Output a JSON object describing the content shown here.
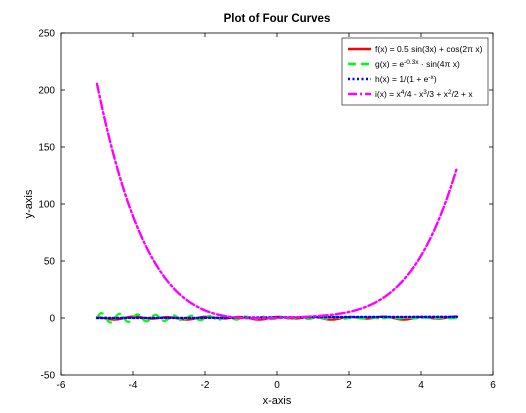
{
  "chart_data": {
    "type": "line",
    "title": "Plot of Four Curves",
    "xlabel": "x-axis",
    "ylabel": "y-axis",
    "xlim": [
      -6,
      6
    ],
    "ylim": [
      -50,
      250
    ],
    "xticks": [
      -6,
      -4,
      -2,
      0,
      2,
      4,
      6
    ],
    "yticks": [
      -50,
      0,
      50,
      100,
      150,
      200,
      250
    ],
    "grid": false,
    "legend_position": "top-right",
    "x_domain": [
      -5,
      5
    ],
    "series": [
      {
        "name": "f(x) = 0.5 sin(3x) + cos(2πx)",
        "legend_html": "f(x) = 0.5 sin(3x) + cos(2π x)",
        "color": "#ff0000",
        "style": "solid",
        "fn": "f"
      },
      {
        "name": "g(x) = e^{-0.3x} · sin(4πx)",
        "legend_html": "g(x) = e<tspan baseline-shift='super' font-size='6.5'>-0.3x</tspan> · sin(4π x)",
        "color": "#00ff00",
        "style": "dashed",
        "fn": "g"
      },
      {
        "name": "h(x) = 1/(1 + e^{-x})",
        "legend_html": "h(x) = 1/(1 + e<tspan baseline-shift='super' font-size='6.5'>-x</tspan>)",
        "color": "#0000ff",
        "style": "dotted",
        "fn": "h"
      },
      {
        "name": "i(x) = x^4/4 - x^3/3 + x^2/2 + x",
        "legend_html": "i(x) = x<tspan baseline-shift='super' font-size='6.5'>4</tspan>/4 - x<tspan baseline-shift='super' font-size='6.5'>3</tspan>/3 + x<tspan baseline-shift='super' font-size='6.5'>2</tspan>/2 + x",
        "color": "#ff00ff",
        "style": "dashdot",
        "fn": "i"
      }
    ]
  }
}
